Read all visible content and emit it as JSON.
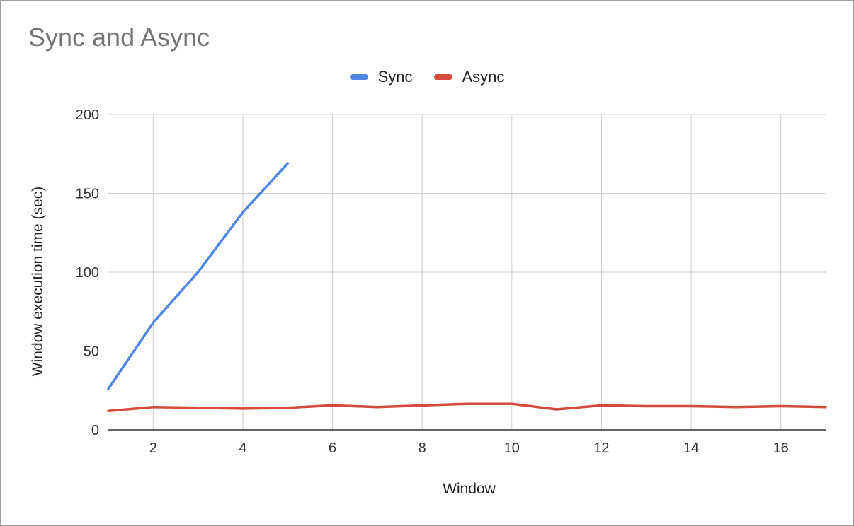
{
  "chart_data": {
    "type": "line",
    "title": "Sync and Async",
    "xlabel": "Window",
    "ylabel": "Window execution time (sec)",
    "xlim": [
      1,
      17
    ],
    "ylim": [
      0,
      200
    ],
    "x_ticks": [
      2,
      4,
      6,
      8,
      10,
      12,
      14,
      16
    ],
    "y_ticks": [
      0,
      50,
      100,
      150,
      200
    ],
    "grid": true,
    "legend_position": "top",
    "series": [
      {
        "name": "Sync",
        "color": "#4f85e5",
        "x": [
          1,
          2,
          3,
          4,
          5
        ],
        "y": [
          26,
          68,
          100,
          138,
          169
        ]
      },
      {
        "name": "Async",
        "color": "#d44b3c",
        "x": [
          1,
          2,
          3,
          4,
          5,
          6,
          7,
          8,
          9,
          10,
          11,
          12,
          13,
          14,
          15,
          16,
          17
        ],
        "y": [
          12,
          14.5,
          14,
          13.5,
          14,
          15.5,
          14.5,
          15.5,
          16.5,
          16.5,
          13,
          15.5,
          15,
          15,
          14.5,
          15,
          14.5
        ]
      }
    ]
  }
}
